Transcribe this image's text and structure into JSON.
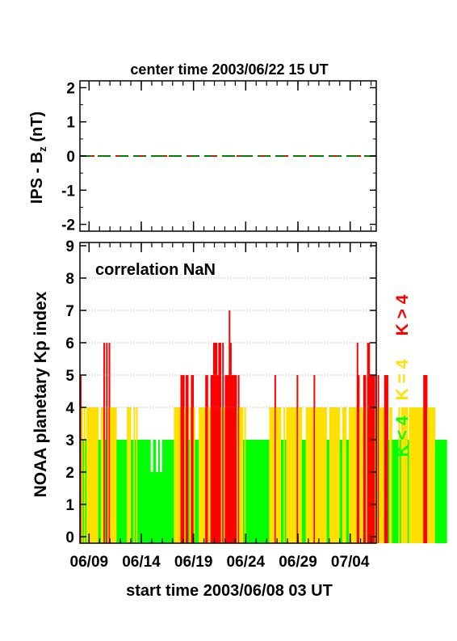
{
  "chart_data": [
    {
      "type": "line",
      "title": "center time 2003/06/22 15 UT",
      "ylabel_main": "IPS - B",
      "ylabel_sub": "z",
      "ylabel_unit": " (nT)",
      "ylim": [
        -2.2,
        2.2
      ],
      "yticks": [
        "2",
        "1",
        "0",
        "-1",
        "-2"
      ],
      "ytick_values": [
        2,
        1,
        0,
        -1,
        -2
      ],
      "series": [
        {
          "color": "#008000",
          "style": "dashed",
          "y": 0
        },
        {
          "color": "#ff0000",
          "style": "dashed",
          "y": 0
        }
      ]
    },
    {
      "type": "bar",
      "annotation": "correlation NaN",
      "ylabel": "NOAA planetary Kp index",
      "xlabel": "start time 2003/06/08 03 UT",
      "ylim": [
        -0.2,
        9.1
      ],
      "yticks": [
        "0",
        "1",
        "2",
        "3",
        "4",
        "5",
        "6",
        "7",
        "8",
        "9"
      ],
      "ytick_values": [
        0,
        1,
        2,
        3,
        4,
        5,
        6,
        7,
        8,
        9
      ],
      "xticks": [
        "06/09",
        "06/14",
        "06/19",
        "06/24",
        "06/29",
        "07/04"
      ],
      "xtick_days": [
        0.875,
        5.875,
        10.875,
        15.875,
        20.875,
        25.875
      ],
      "x_range_days": [
        0,
        28.375
      ],
      "bar_width_days": 0.125,
      "legend": [
        {
          "label": "K < 4",
          "color": "#00ff00"
        },
        {
          "label": "K = 4",
          "color": "#ffe000"
        },
        {
          "label": "K > 4",
          "color": "#ff0000"
        }
      ],
      "colors": {
        "low": "#00ff00",
        "mid": "#ffe000",
        "high": "#ff0000"
      },
      "values": [
        5,
        4,
        3,
        4,
        3,
        4,
        4,
        4,
        4,
        4,
        4,
        4,
        4,
        4,
        3,
        3,
        4,
        4,
        6,
        3,
        6,
        4,
        6,
        4,
        4,
        4,
        4,
        4,
        3,
        3,
        3,
        3,
        3,
        3,
        3,
        3,
        4,
        4,
        4,
        3,
        3,
        4,
        3,
        4,
        3,
        3,
        3,
        3,
        3,
        3,
        3,
        3,
        3,
        3,
        2,
        2,
        3,
        3,
        2,
        2,
        3,
        2,
        2,
        3,
        3,
        3,
        3,
        3,
        3,
        3,
        3,
        3,
        4,
        4,
        4,
        4,
        4,
        5,
        5,
        5,
        4,
        5,
        5,
        3,
        4,
        5,
        5,
        4,
        3,
        3,
        3,
        4,
        4,
        4,
        4,
        4,
        5,
        5,
        4,
        4,
        5,
        5,
        6,
        6,
        6,
        5,
        6,
        6,
        4,
        6,
        4,
        5,
        5,
        5,
        7,
        6,
        5,
        5,
        5,
        5,
        4,
        5,
        4,
        4,
        4,
        3,
        4,
        3,
        3,
        3,
        3,
        3,
        3,
        3,
        3,
        3,
        3,
        3,
        3,
        3,
        3,
        3,
        3,
        3,
        3,
        4,
        4,
        4,
        4,
        5,
        4,
        4,
        4,
        4,
        3,
        3,
        4,
        3,
        4,
        4,
        4,
        4,
        4,
        4,
        4,
        4,
        5,
        4,
        4,
        4,
        3,
        3,
        3,
        4,
        4,
        4,
        4,
        4,
        4,
        5,
        4,
        4,
        4,
        4,
        4,
        4,
        4,
        4,
        4,
        3,
        3,
        4,
        4,
        4,
        4,
        4,
        4,
        4,
        4,
        3,
        3,
        4,
        4,
        4,
        3,
        3,
        4,
        4,
        4,
        4,
        4,
        4,
        6,
        5,
        4,
        4,
        4,
        5,
        5,
        4,
        6,
        6,
        5,
        5,
        5,
        5,
        4,
        4,
        5,
        4,
        4,
        4,
        4,
        5,
        5,
        5,
        3,
        4,
        4,
        3,
        3,
        3,
        3,
        3,
        4,
        3,
        4,
        4,
        4,
        4,
        4,
        3,
        4,
        4,
        4,
        4,
        4,
        4,
        4,
        4,
        4,
        4,
        4,
        5,
        5,
        5,
        4,
        4,
        4,
        4,
        4,
        4,
        3,
        3,
        3,
        3,
        3,
        3,
        3,
        3,
        3
      ]
    }
  ]
}
